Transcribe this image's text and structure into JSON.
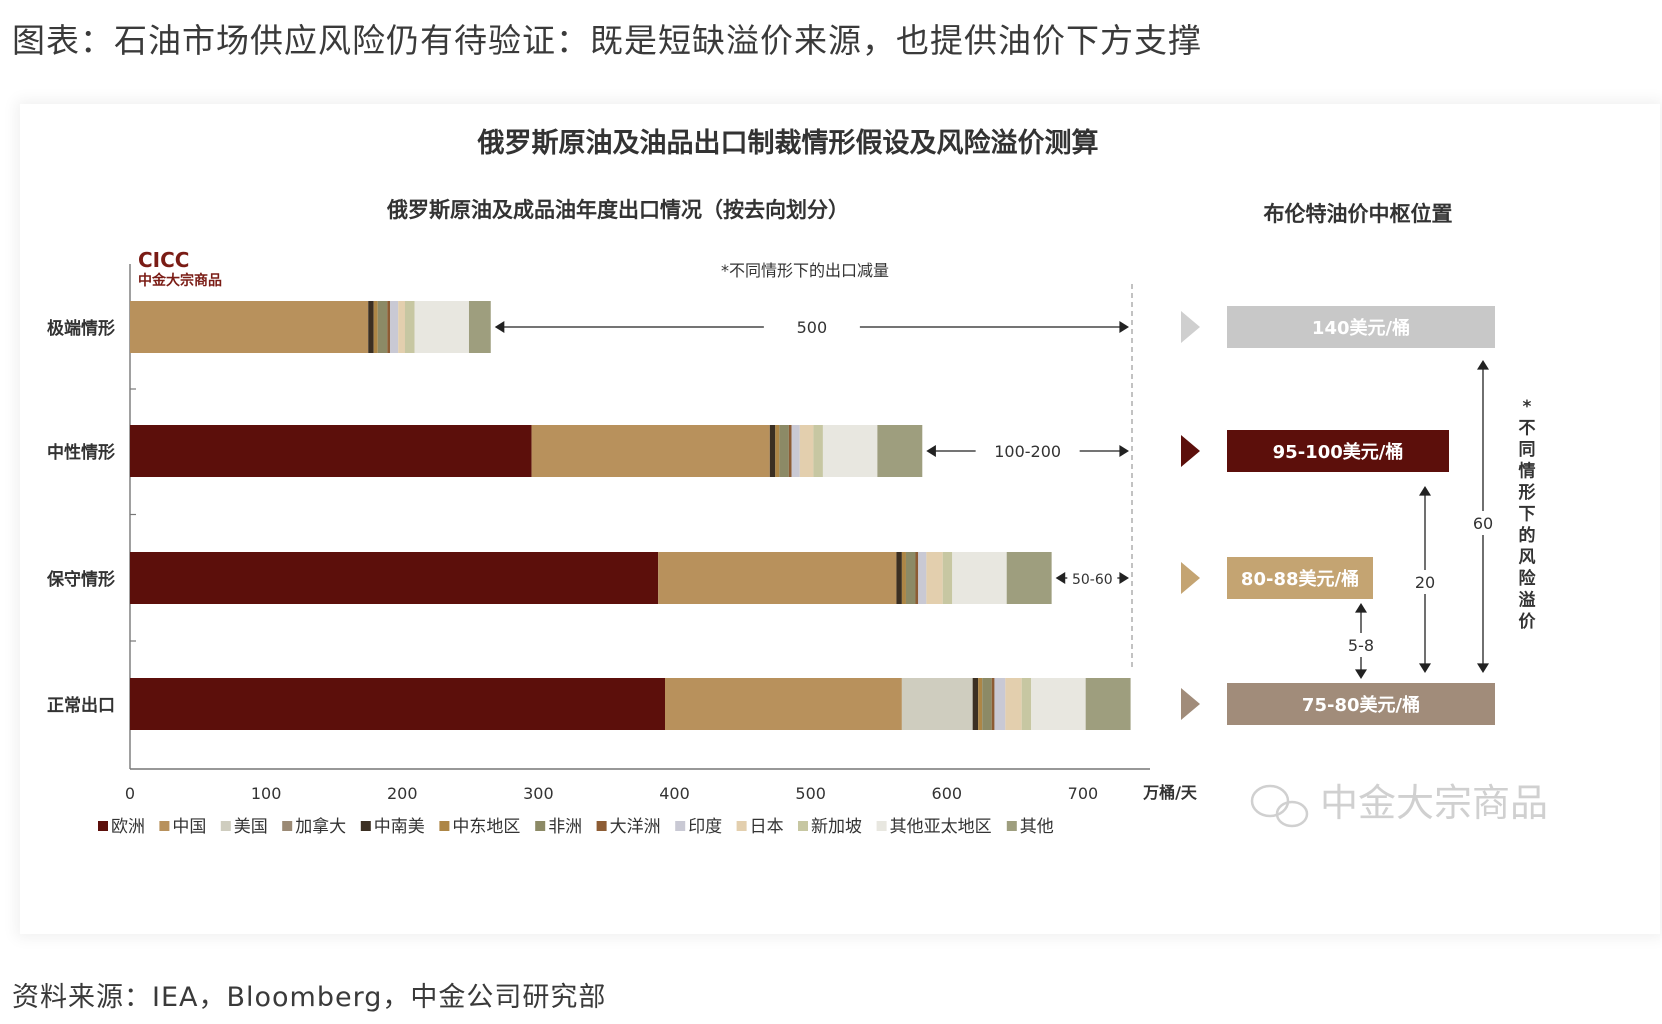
{
  "page": {
    "title": "图表：石油市场供应风险仍有待验证：既是短缺溢价来源，也提供油价下方支撑",
    "source": "资料来源：IEA，Bloomberg，中金公司研究部",
    "watermark": "中金大宗商品"
  },
  "chart_data": {
    "type": "bar",
    "orientation": "horizontal",
    "stacked": true,
    "title": "俄罗斯原油及油品出口制裁情形假设及风险溢价测算",
    "subtitle": "俄罗斯原油及成品油年度出口情况（按去向划分）",
    "logo": {
      "name": "CICC",
      "sub": "中金大宗商品"
    },
    "note_top": "*不同情形下的出口减量",
    "xlabel": "万桶/天",
    "xlim": [
      0,
      750
    ],
    "xticks": [
      0,
      100,
      200,
      300,
      400,
      500,
      600,
      700
    ],
    "legend_position": "bottom",
    "categories": [
      "极端情形",
      "中性情形",
      "保守情形",
      "正常出口"
    ],
    "series": [
      {
        "name": "欧洲",
        "color": "#5c0f0b",
        "values": [
          0,
          295,
          388,
          393
        ]
      },
      {
        "name": "中国",
        "color": "#b8915c",
        "values": [
          175,
          175,
          175,
          174
        ]
      },
      {
        "name": "美国",
        "color": "#cfcdbf",
        "values": [
          0,
          0,
          0,
          52
        ]
      },
      {
        "name": "加拿大",
        "color": "#9b8a75",
        "values": [
          0,
          0,
          0,
          0
        ]
      },
      {
        "name": "中南美",
        "color": "#3b2f22",
        "values": [
          4,
          4,
          4,
          4
        ]
      },
      {
        "name": "中东地区",
        "color": "#ad8646",
        "values": [
          3,
          3,
          3,
          3
        ]
      },
      {
        "name": "非洲",
        "color": "#8c8a66",
        "values": [
          7,
          7,
          7,
          7
        ]
      },
      {
        "name": "大洋洲",
        "color": "#8d5c34",
        "values": [
          2,
          2,
          2,
          2
        ]
      },
      {
        "name": "印度",
        "color": "#c9c9d4",
        "values": [
          6,
          6,
          6,
          8
        ]
      },
      {
        "name": "日本",
        "color": "#e3cfae",
        "values": [
          5,
          10,
          12,
          12
        ]
      },
      {
        "name": "新加坡",
        "color": "#c7c7a2",
        "values": [
          7,
          7,
          7,
          7
        ]
      },
      {
        "name": "其他亚太地区",
        "color": "#e8e7e0",
        "values": [
          40,
          40,
          40,
          40
        ]
      },
      {
        "name": "其他",
        "color": "#9e9e7e",
        "values": [
          16,
          33,
          33,
          33
        ]
      }
    ],
    "reductions": [
      {
        "category": "极端情形",
        "label": "500"
      },
      {
        "category": "中性情形",
        "label": "100-200"
      },
      {
        "category": "保守情形",
        "label": "50-60"
      }
    ],
    "brent": {
      "title": "布伦特油价中枢位置",
      "side_note": "*不同情形下的风险溢价",
      "unit": "美元/桶",
      "levels": [
        {
          "category": "极端情形",
          "label": "140美元/桶",
          "value": 140,
          "color": "#c8c8c8"
        },
        {
          "category": "中性情形",
          "label": "95-100美元/桶",
          "value": 97.5,
          "color": "#5c0f0b"
        },
        {
          "category": "保守情形",
          "label": "80-88美元/桶",
          "value": 84,
          "color": "#c4a472"
        },
        {
          "category": "正常出口",
          "label": "75-80美元/桶",
          "value": 77.5,
          "color": "#a18c7a"
        }
      ],
      "arrow_colors": [
        "#cfcfcf",
        "#5c0f0b",
        "#c4a472",
        "#a18c7a"
      ],
      "premiums": [
        {
          "label": "5-8"
        },
        {
          "label": "20"
        },
        {
          "label": "60"
        }
      ]
    }
  }
}
